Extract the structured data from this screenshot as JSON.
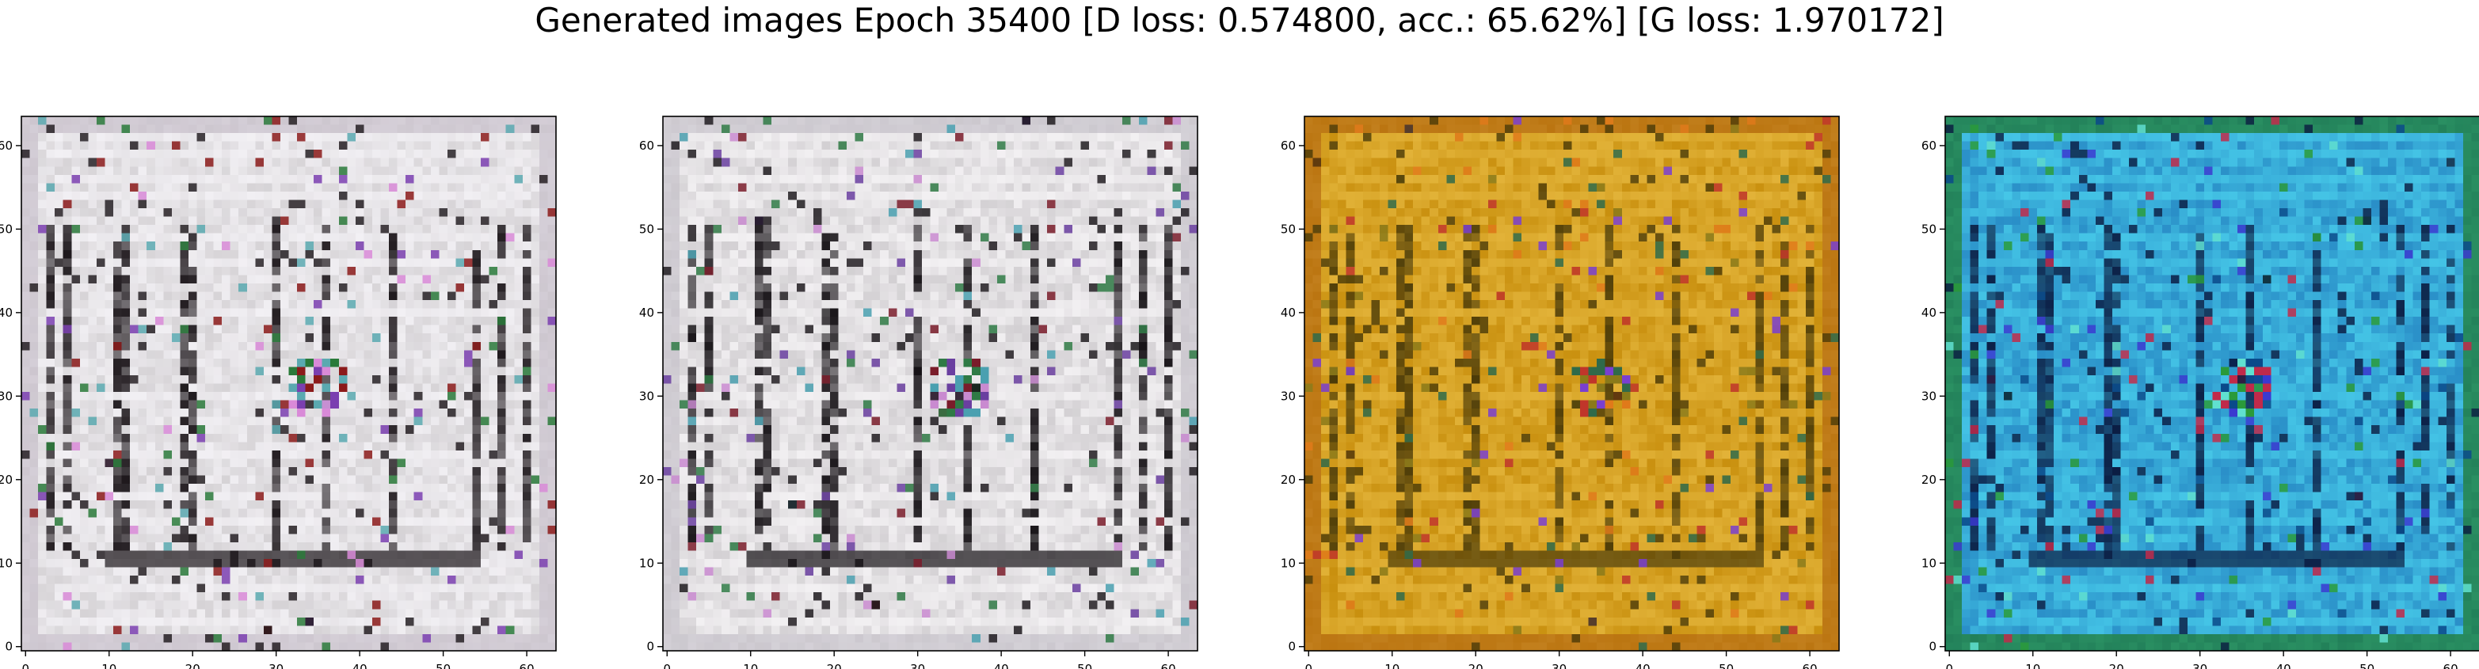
{
  "figure": {
    "title": "Generated images Epoch 35400 [D loss: 0.574800, acc.: 65.62%] [G loss: 1.970172]"
  },
  "chart_data": [
    {
      "type": "heatmap",
      "title": "",
      "xlabel": "",
      "ylabel": "",
      "xlim": [
        -0.5,
        63.5
      ],
      "ylim": [
        63.5,
        -0.5
      ],
      "xticks": [
        0,
        10,
        20,
        30,
        40,
        50,
        60
      ],
      "yticks": [
        0,
        10,
        20,
        30,
        40,
        50,
        60
      ],
      "grid": false,
      "palette": {
        "base": "#d6d3d6",
        "light": "#f3f1f5",
        "dark": "#1a1418",
        "border": "#c9c1cc",
        "accents": [
          "#8b1a1a",
          "#2a7a3a",
          "#7b3fb0",
          "#d98ad8",
          "#5aa9b0"
        ]
      }
    },
    {
      "type": "heatmap",
      "title": "",
      "xlabel": "",
      "ylabel": "",
      "xlim": [
        -0.5,
        63.5
      ],
      "ylim": [
        63.5,
        -0.5
      ],
      "xticks": [
        0,
        10,
        20,
        30,
        40,
        50,
        60
      ],
      "yticks": [
        0,
        10,
        20,
        30,
        40,
        50,
        60
      ],
      "grid": false,
      "palette": {
        "base": "#d3d0d3",
        "light": "#f4f2f4",
        "dark": "#141014",
        "border": "#c8c4cc",
        "accents": [
          "#7a1c2a",
          "#2f7a45",
          "#6a3fa0",
          "#c98ad0",
          "#4aa0b0"
        ]
      }
    },
    {
      "type": "heatmap",
      "title": "",
      "xlabel": "",
      "ylabel": "",
      "xlim": [
        -0.5,
        63.5
      ],
      "ylim": [
        63.5,
        -0.5
      ],
      "xticks": [
        0,
        10,
        20,
        30,
        40,
        50,
        60
      ],
      "yticks": [
        0,
        10,
        20,
        30,
        40,
        50,
        60
      ],
      "grid": false,
      "palette": {
        "base": "#c9900f",
        "light": "#e3b43a",
        "dark": "#4a3a08",
        "border": "#b56a12",
        "accents": [
          "#c0352a",
          "#2f6a4a",
          "#7a3fd0",
          "#e07a1a",
          "#8a7a1a"
        ]
      }
    },
    {
      "type": "heatmap",
      "title": "",
      "xlabel": "",
      "ylabel": "",
      "xlim": [
        -0.5,
        63.5
      ],
      "ylim": [
        63.5,
        -0.5
      ],
      "xticks": [
        0,
        10,
        20,
        30,
        40,
        50,
        60
      ],
      "yticks": [
        0,
        10,
        20,
        30,
        40,
        50,
        60
      ],
      "grid": false,
      "palette": {
        "base": "#2a8fc8",
        "light": "#46c8e8",
        "dark": "#0a1a40",
        "border": "#1f7a2a",
        "accents": [
          "#2a9a3a",
          "#c02a4a",
          "#3a3ad0",
          "#60e0d0",
          "#0a4a8a"
        ]
      }
    }
  ]
}
